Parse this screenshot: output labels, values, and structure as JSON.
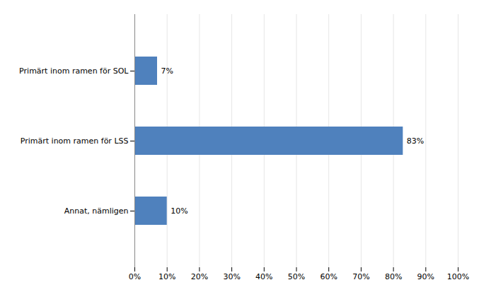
{
  "chart_data": {
    "type": "bar",
    "orientation": "horizontal",
    "categories": [
      "Primärt inom ramen för SOL",
      "Primärt inom ramen för LSS",
      "Annat, nämligen"
    ],
    "values": [
      0.07,
      0.83,
      0.1
    ],
    "value_labels": [
      "7%",
      "83%",
      "10%"
    ],
    "data_labels": true,
    "color": "#4f81bd",
    "xlim": [
      0,
      1.0
    ],
    "xticks": [
      {
        "value": 0.0,
        "label": "0%"
      },
      {
        "value": 0.1,
        "label": "10%"
      },
      {
        "value": 0.2,
        "label": "20%"
      },
      {
        "value": 0.3,
        "label": "30%"
      },
      {
        "value": 0.4,
        "label": "40%"
      },
      {
        "value": 0.5,
        "label": "50%"
      },
      {
        "value": 0.6,
        "label": "60%"
      },
      {
        "value": 0.7,
        "label": "70%"
      },
      {
        "value": 0.8,
        "label": "80%"
      },
      {
        "value": 0.9,
        "label": "90%"
      },
      {
        "value": 1.0,
        "label": "100%"
      }
    ],
    "grid": true
  }
}
